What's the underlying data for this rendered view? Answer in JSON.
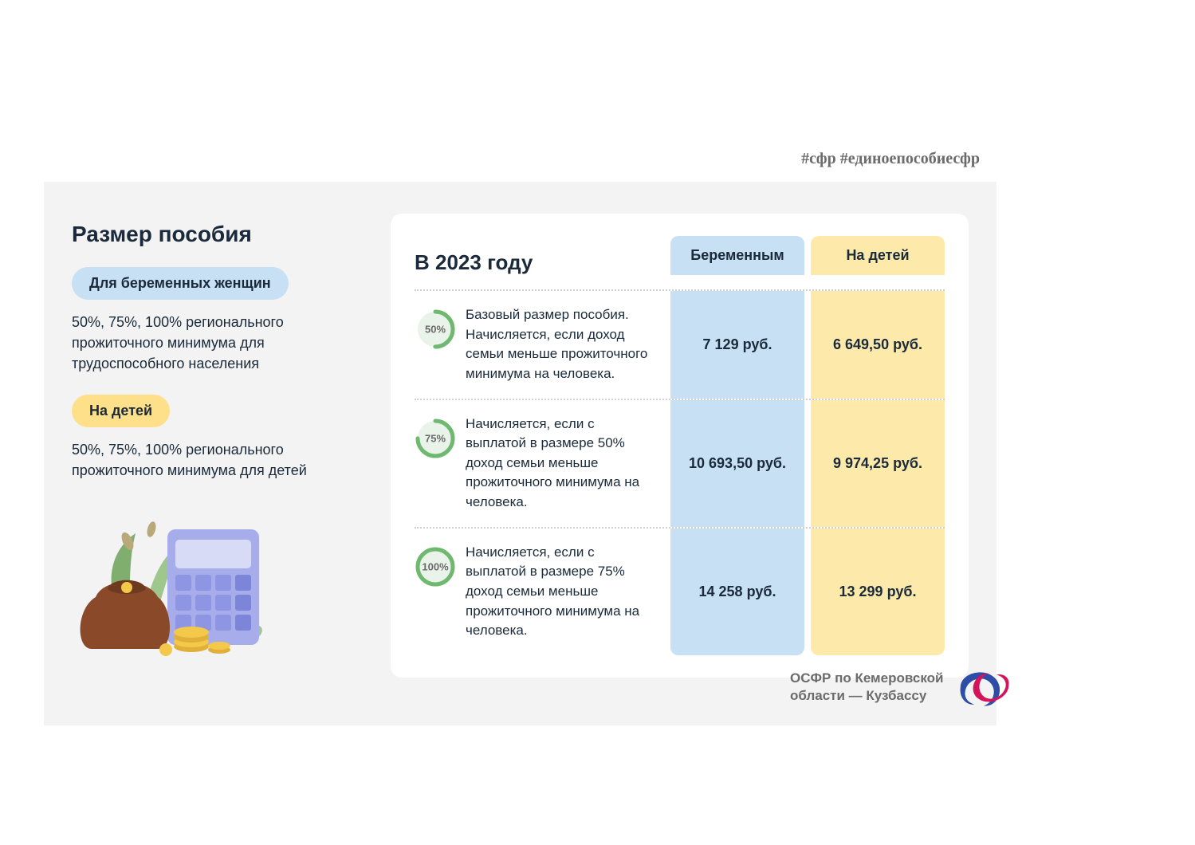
{
  "hashtags": "#сфр #единоепособиесфр",
  "colors": {
    "panel_bg": "#f3f3f3",
    "card_bg": "#ffffff",
    "text_dark": "#1a2a3a",
    "text_grey": "#6b6b6b",
    "pill_blue": "#c7e0f4",
    "pill_yellow": "#ffe08a",
    "col_blue": "#c7e0f4",
    "col_yellow": "#fde9a9",
    "dotted": "#cfcfcf",
    "badge_ring": "#6fb86f",
    "badge_bg": "#e9f3e9",
    "logo_red": "#d4145a",
    "logo_blue": "#2e4da7"
  },
  "left": {
    "title": "Размер пособия",
    "pregnant_pill": "Для беременных женщин",
    "pregnant_desc": "50%, 75%, 100% регионального прожиточного минимума для трудоспособного населения",
    "children_pill": "На детей",
    "children_desc": "50%, 75%, 100% регионального прожиточного минимума для детей"
  },
  "table": {
    "year_title": "В 2023 году",
    "col_pregnant": "Беременным",
    "col_children": "На детей",
    "rows": [
      {
        "percent": "50%",
        "percent_value": 50,
        "desc": "Базовый размер пособия. Начисляется, если доход семьи меньше прожиточного минимума на человека.",
        "pregnant": "7 129 руб.",
        "children": "6 649,50 руб."
      },
      {
        "percent": "75%",
        "percent_value": 75,
        "desc": "Начисляется, если с выплатой в размере 50% доход семьи меньше прожиточного минимума на человека.",
        "pregnant": "10 693,50 руб.",
        "children": "9 974,25 руб."
      },
      {
        "percent": "100%",
        "percent_value": 100,
        "desc": "Начисляется, если с выплатой в размере 75% доход семьи меньше прожиточного минимума на человека.",
        "pregnant": "14 258 руб.",
        "children": "13 299 руб."
      }
    ]
  },
  "footer": "ОСФР по Кемеровской области — Кузбассу",
  "illustration": {
    "calculator_body": "#a7adeb",
    "calculator_screen": "#d7dbf6",
    "calculator_btn1": "#8e96e3",
    "calculator_btn2": "#7c85d8",
    "purse": "#8a4a2a",
    "purse_dark": "#6e3a20",
    "coin": "#f3c84b",
    "coin_dark": "#e0b038",
    "leaf1": "#7fae6e",
    "leaf2": "#9ec78e",
    "leaf3": "#b8a87a"
  }
}
